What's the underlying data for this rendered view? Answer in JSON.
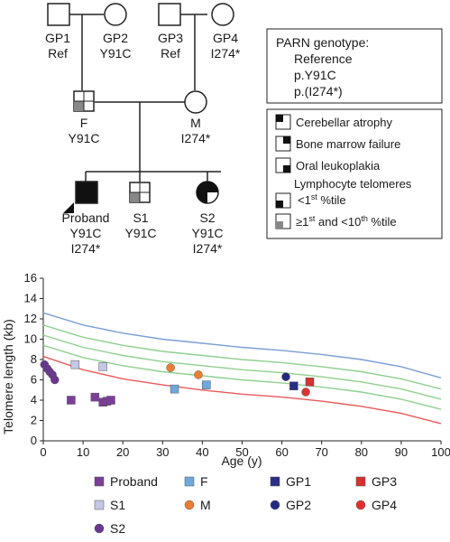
{
  "pedigree": {
    "individuals": [
      {
        "id": "GP1",
        "name": "GP1",
        "genotype": "Ref",
        "sex": "male"
      },
      {
        "id": "GP2",
        "name": "GP2",
        "genotype": "Y91C",
        "sex": "female"
      },
      {
        "id": "GP3",
        "name": "GP3",
        "genotype": "Ref",
        "sex": "male"
      },
      {
        "id": "GP4",
        "name": "GP4",
        "genotype": "I274*",
        "sex": "female"
      },
      {
        "id": "F",
        "name": "F",
        "genotype": "Y91C",
        "sex": "male"
      },
      {
        "id": "M",
        "name": "M",
        "genotype": "I274*",
        "sex": "female"
      },
      {
        "id": "Proband",
        "name": "Proband",
        "genotype": "Y91C",
        "genotype2": "I274*",
        "sex": "male"
      },
      {
        "id": "S1",
        "name": "S1",
        "genotype": "Y91C",
        "sex": "male"
      },
      {
        "id": "S2",
        "name": "S2",
        "genotype": "Y91C",
        "genotype2": "I274*",
        "sex": "female"
      }
    ],
    "genotype_box": {
      "title": "PARN genotype:",
      "lines": [
        "Reference",
        "p.Y91C",
        "p.(I274*)"
      ]
    },
    "phenotype_legend": {
      "items": [
        {
          "quadrant": "top-left",
          "label": "Cerebellar atrophy"
        },
        {
          "quadrant": "top-right",
          "label": "Bone marrow failure"
        },
        {
          "quadrant": "bottom-right",
          "label": "Oral leukoplakia"
        }
      ],
      "telomere_header": "Lymphocyte telomeres",
      "telomere_items": [
        {
          "fill": "#111111",
          "label_main": "<1",
          "label_sup": "st",
          "label_tail": " %tile"
        },
        {
          "fill": "#888888",
          "label_pre": "≥1",
          "label_sup": "st",
          "label_main": " and <10",
          "label_sup2": "th",
          "label_tail": " %tile"
        }
      ]
    }
  },
  "chart_data": {
    "type": "scatter",
    "xlabel": "Age (y)",
    "ylabel": "Telomere length (kb)",
    "xlim": [
      0,
      100
    ],
    "ylim": [
      0,
      16
    ],
    "xticks": [
      0,
      10,
      20,
      30,
      40,
      50,
      60,
      70,
      80,
      90,
      100
    ],
    "yticks": [
      0,
      2,
      4,
      6,
      8,
      10,
      12,
      14,
      16
    ],
    "grid": false,
    "percentile_curves": [
      {
        "color": "#7a9fd4",
        "points": [
          [
            0,
            12.6
          ],
          [
            10,
            11.4
          ],
          [
            20,
            10.6
          ],
          [
            30,
            10.0
          ],
          [
            40,
            9.6
          ],
          [
            50,
            9.2
          ],
          [
            60,
            8.9
          ],
          [
            70,
            8.5
          ],
          [
            80,
            8.0
          ],
          [
            90,
            7.3
          ],
          [
            100,
            6.2
          ]
        ]
      },
      {
        "color": "#8fd08f",
        "points": [
          [
            0,
            11.4
          ],
          [
            10,
            10.2
          ],
          [
            20,
            9.4
          ],
          [
            30,
            8.8
          ],
          [
            40,
            8.4
          ],
          [
            50,
            8.0
          ],
          [
            60,
            7.7
          ],
          [
            70,
            7.3
          ],
          [
            80,
            6.8
          ],
          [
            90,
            6.1
          ],
          [
            100,
            5.1
          ]
        ]
      },
      {
        "color": "#8fd08f",
        "points": [
          [
            0,
            10.4
          ],
          [
            10,
            9.2
          ],
          [
            20,
            8.4
          ],
          [
            30,
            7.8
          ],
          [
            40,
            7.4
          ],
          [
            50,
            7.0
          ],
          [
            60,
            6.7
          ],
          [
            70,
            6.3
          ],
          [
            80,
            5.8
          ],
          [
            90,
            5.1
          ],
          [
            100,
            4.1
          ]
        ]
      },
      {
        "color": "#8fd08f",
        "points": [
          [
            0,
            9.4
          ],
          [
            10,
            8.2
          ],
          [
            20,
            7.4
          ],
          [
            30,
            6.8
          ],
          [
            40,
            6.4
          ],
          [
            50,
            6.0
          ],
          [
            60,
            5.7
          ],
          [
            70,
            5.3
          ],
          [
            80,
            4.8
          ],
          [
            90,
            4.1
          ],
          [
            100,
            3.1
          ]
        ]
      },
      {
        "color": "#e85a5a",
        "points": [
          [
            0,
            8.3
          ],
          [
            10,
            7.0
          ],
          [
            20,
            6.1
          ],
          [
            30,
            5.5
          ],
          [
            40,
            5.0
          ],
          [
            50,
            4.6
          ],
          [
            60,
            4.3
          ],
          [
            70,
            3.9
          ],
          [
            80,
            3.4
          ],
          [
            90,
            2.7
          ],
          [
            100,
            1.7
          ]
        ]
      }
    ],
    "series": [
      {
        "name": "Proband",
        "shape": "square",
        "color": "#7b3f98",
        "points": [
          [
            7,
            4.0
          ],
          [
            13,
            4.3
          ],
          [
            15,
            3.8
          ],
          [
            16,
            3.9
          ],
          [
            17,
            4.0
          ]
        ]
      },
      {
        "name": "F",
        "shape": "square",
        "color": "#6ea8dc",
        "points": [
          [
            33,
            5.1
          ],
          [
            41,
            5.5
          ]
        ]
      },
      {
        "name": "GP1",
        "shape": "square",
        "color": "#2a2f8a",
        "points": [
          [
            63,
            5.4
          ]
        ]
      },
      {
        "name": "GP3",
        "shape": "square",
        "color": "#d93030",
        "points": [
          [
            67,
            5.8
          ]
        ]
      },
      {
        "name": "S1",
        "shape": "square",
        "color": "#c4c7e6",
        "points": [
          [
            8,
            7.5
          ],
          [
            15,
            7.3
          ]
        ]
      },
      {
        "name": "M",
        "shape": "circle",
        "color": "#ec7d31",
        "points": [
          [
            32,
            7.2
          ],
          [
            39,
            6.5
          ]
        ]
      },
      {
        "name": "GP2",
        "shape": "circle",
        "color": "#232a84",
        "points": [
          [
            61,
            6.3
          ]
        ]
      },
      {
        "name": "GP4",
        "shape": "circle",
        "color": "#e23030",
        "points": [
          [
            66,
            4.8
          ]
        ]
      },
      {
        "name": "S2",
        "shape": "circle",
        "color": "#6a3690",
        "points": [
          [
            0.3,
            7.5
          ],
          [
            1.0,
            7.1
          ],
          [
            1.6,
            6.8
          ],
          [
            2.3,
            6.5
          ],
          [
            2.9,
            6.0
          ]
        ]
      }
    ]
  }
}
